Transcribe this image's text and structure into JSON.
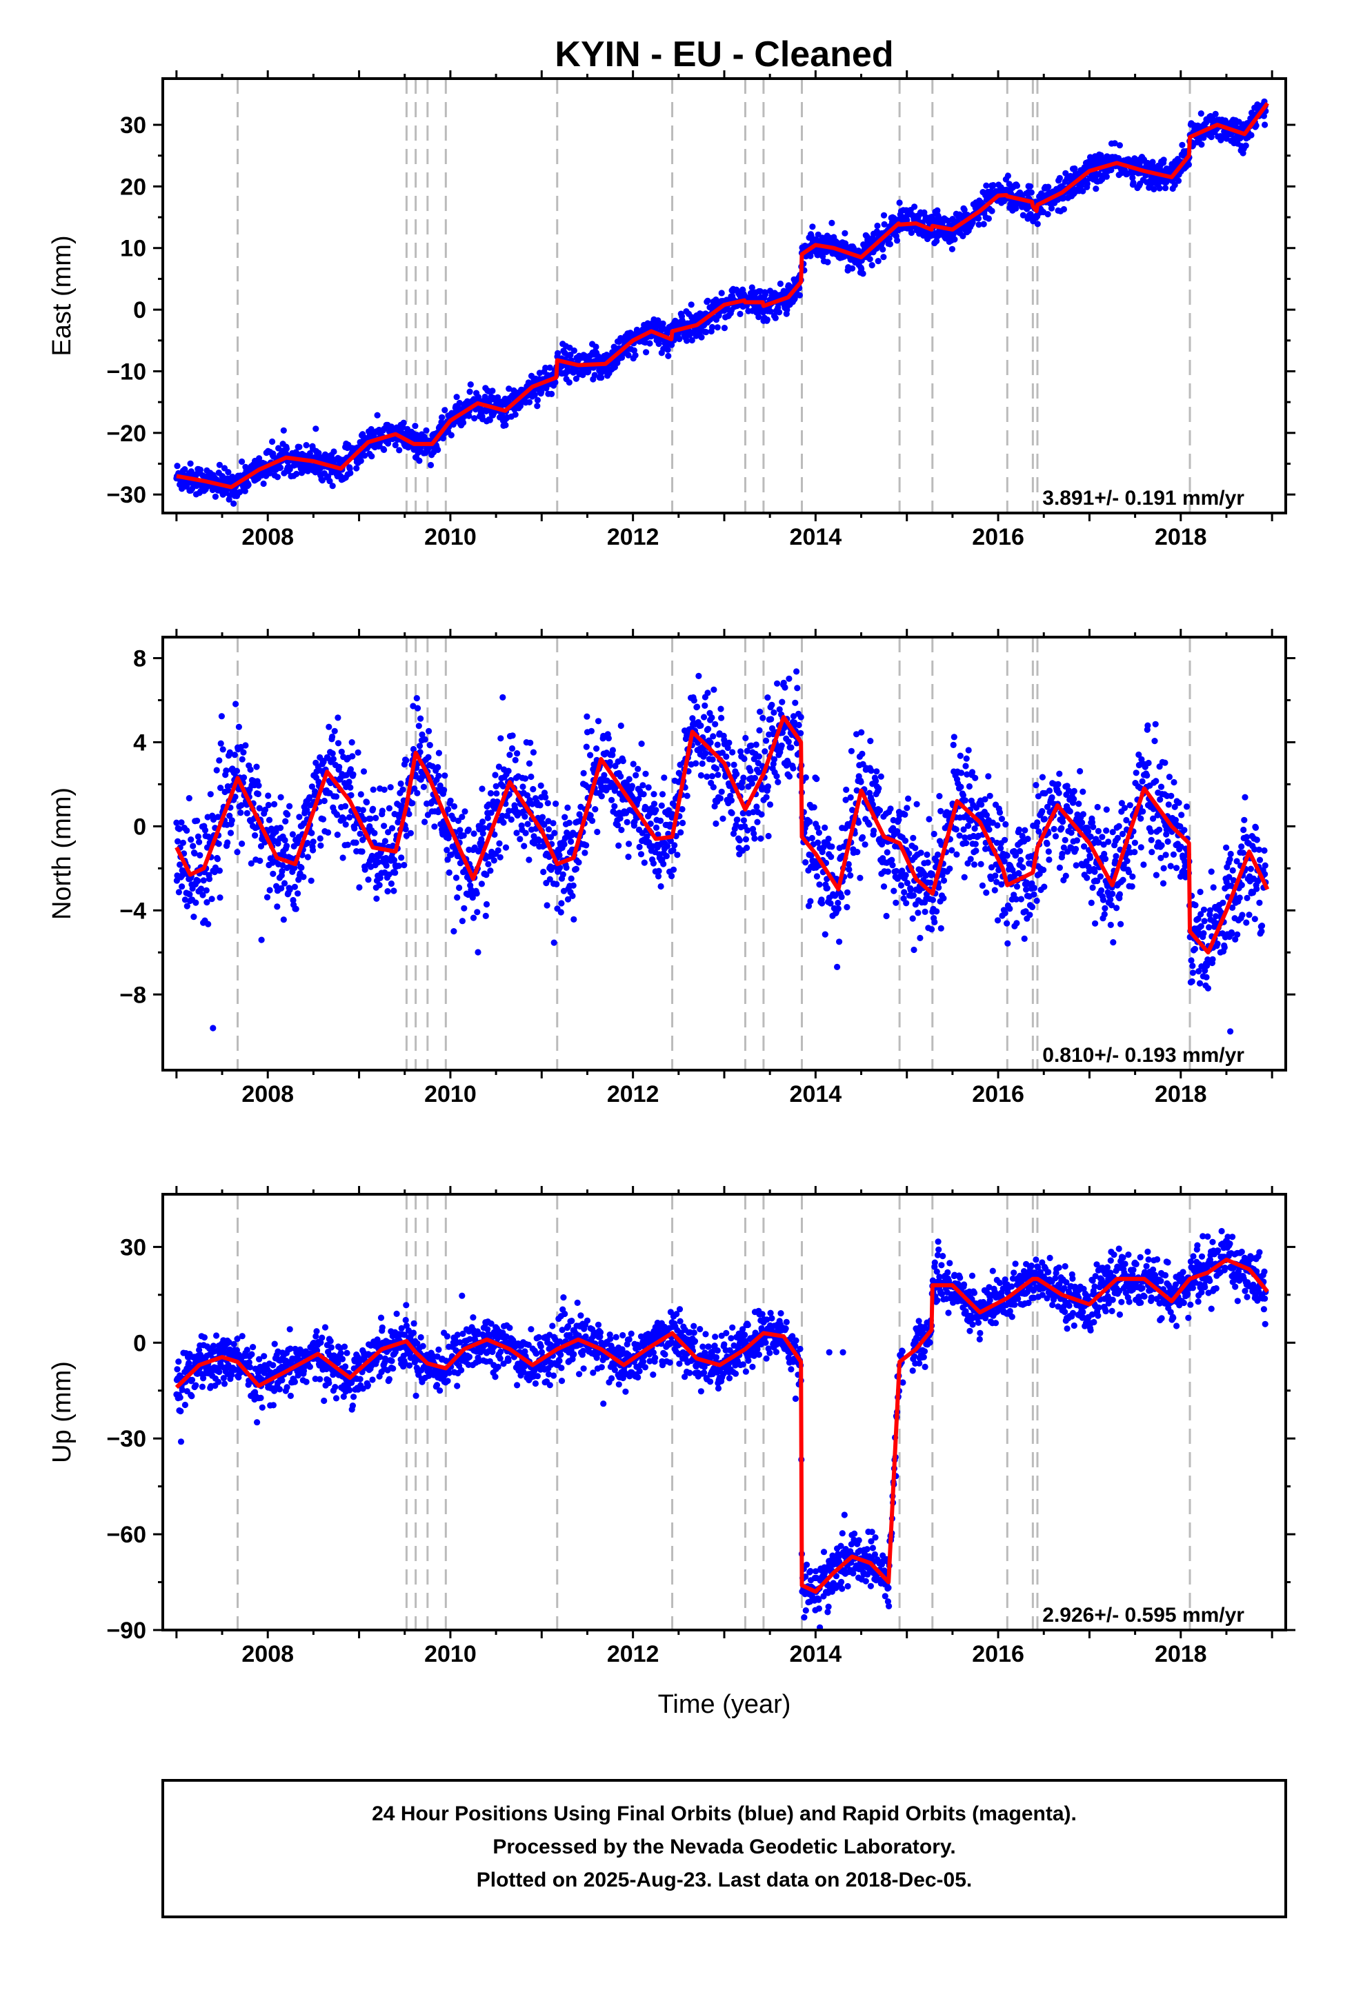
{
  "chart_data": {
    "type": "scatter",
    "title": "KYIN  - EU - Cleaned",
    "xlabel": "Time (year)",
    "xlim": [
      2006.85,
      2019.15
    ],
    "x_ticks": [
      2008,
      2010,
      2012,
      2014,
      2016,
      2018
    ],
    "offset_lines_year": [
      2007.67,
      2009.52,
      2009.62,
      2009.75,
      2009.95,
      2011.17,
      2012.43,
      2013.23,
      2013.43,
      2013.85,
      2014.92,
      2015.28,
      2016.1,
      2016.38,
      2016.43,
      2018.1
    ],
    "panels": [
      {
        "name": "east",
        "ylabel": "East (mm)",
        "ylim": [
          -33,
          37.5
        ],
        "y_ticks": [
          -30,
          -20,
          -10,
          0,
          10,
          20,
          30
        ],
        "rate_text": "3.891+/- 0.191 mm/yr",
        "trend": {
          "x": [
            2007.0,
            2007.3,
            2007.6,
            2007.9,
            2008.2,
            2008.5,
            2008.8,
            2009.1,
            2009.4,
            2009.6,
            2009.8,
            2010.0,
            2010.3,
            2010.6,
            2010.9,
            2011.16,
            2011.17,
            2011.4,
            2011.7,
            2012.0,
            2012.2,
            2012.42,
            2012.43,
            2012.7,
            2013.0,
            2013.22,
            2013.23,
            2013.42,
            2013.43,
            2013.7,
            2013.84,
            2013.85,
            2014.0,
            2014.2,
            2014.5,
            2014.8,
            2014.91,
            2014.92,
            2015.1,
            2015.27,
            2015.28,
            2015.5,
            2015.8,
            2016.0,
            2016.09,
            2016.1,
            2016.37,
            2016.38,
            2016.42,
            2016.43,
            2016.7,
            2017.0,
            2017.3,
            2017.6,
            2017.9,
            2018.09,
            2018.1,
            2018.4,
            2018.7,
            2018.95
          ],
          "y": [
            -27,
            -27.8,
            -28.8,
            -26,
            -24,
            -24.6,
            -25.8,
            -21.5,
            -20.2,
            -21.8,
            -21.8,
            -18,
            -15.2,
            -16.4,
            -12.5,
            -11,
            -8.2,
            -9,
            -8.8,
            -5,
            -3.5,
            -4.8,
            -3.5,
            -2.5,
            0.8,
            1.5,
            1.2,
            1.2,
            0.6,
            2,
            4.5,
            9,
            10.5,
            10,
            8.5,
            12.5,
            14,
            13.8,
            14,
            13,
            13.6,
            13,
            16,
            18.5,
            18.6,
            18.4,
            17.5,
            16.8,
            16,
            17,
            19,
            22.5,
            23.8,
            22.5,
            21.5,
            25,
            28,
            30,
            28.5,
            33.5
          ]
        }
      },
      {
        "name": "north",
        "ylabel": "North (mm)",
        "ylim": [
          -11.6,
          9.0
        ],
        "y_ticks": [
          -8,
          -4,
          0,
          4,
          8
        ],
        "rate_text": "0.810+/- 0.193 mm/yr",
        "trend": {
          "x": [
            2007.0,
            2007.15,
            2007.3,
            2007.67,
            2008.1,
            2008.3,
            2008.65,
            2008.9,
            2009.15,
            2009.4,
            2009.52,
            2009.62,
            2009.75,
            2009.95,
            2010.25,
            2010.65,
            2011.0,
            2011.17,
            2011.35,
            2011.65,
            2012.0,
            2012.25,
            2012.43,
            2012.65,
            2013.0,
            2013.23,
            2013.43,
            2013.65,
            2013.84,
            2013.85,
            2014.0,
            2014.25,
            2014.5,
            2014.75,
            2014.92,
            2015.1,
            2015.28,
            2015.55,
            2015.8,
            2016.05,
            2016.1,
            2016.38,
            2016.43,
            2016.65,
            2017.0,
            2017.25,
            2017.6,
            2017.9,
            2018.09,
            2018.1,
            2018.3,
            2018.5,
            2018.75,
            2018.95
          ],
          "y": [
            -1,
            -2.3,
            -2,
            2.3,
            -1.5,
            -1.8,
            2.6,
            1.2,
            -1,
            -1.2,
            1,
            3.5,
            2.5,
            0.4,
            -2.5,
            2.1,
            -0.2,
            -1.8,
            -1.5,
            3.2,
            1,
            -0.6,
            -0.5,
            4.5,
            3,
            0.8,
            2.5,
            5.2,
            4,
            -0.5,
            -1.3,
            -3,
            1.7,
            -0.5,
            -0.8,
            -2.5,
            -3.2,
            1.2,
            0.2,
            -2,
            -2.8,
            -2.2,
            -1,
            1,
            -0.8,
            -2.8,
            1.8,
            0,
            -0.8,
            -5,
            -6,
            -4,
            -1.2,
            -3
          ]
        }
      },
      {
        "name": "up",
        "ylabel": "Up (mm)",
        "ylim": [
          -90,
          46.5
        ],
        "y_ticks": [
          -90,
          -60,
          -30,
          0,
          30
        ],
        "rate_text": "2.926+/- 0.595 mm/yr",
        "trend": {
          "x": [
            2007.0,
            2007.25,
            2007.5,
            2007.67,
            2007.9,
            2008.2,
            2008.55,
            2008.9,
            2009.25,
            2009.52,
            2009.62,
            2009.75,
            2009.95,
            2010.15,
            2010.4,
            2010.65,
            2010.9,
            2011.17,
            2011.4,
            2011.65,
            2011.9,
            2012.15,
            2012.43,
            2012.7,
            2012.95,
            2013.23,
            2013.43,
            2013.65,
            2013.84,
            2013.85,
            2014.0,
            2014.2,
            2014.4,
            2014.6,
            2014.8,
            2014.92,
            2015.1,
            2015.27,
            2015.28,
            2015.5,
            2015.8,
            2016.1,
            2016.38,
            2016.43,
            2016.7,
            2017.0,
            2017.3,
            2017.6,
            2017.9,
            2018.1,
            2018.3,
            2018.5,
            2018.75,
            2018.95
          ],
          "y": [
            -14,
            -7,
            -4.5,
            -6,
            -13.5,
            -9,
            -3.5,
            -11,
            -2,
            0.5,
            -3,
            -6.5,
            -8,
            -2,
            1,
            -2,
            -7,
            -2,
            1,
            -2,
            -7,
            -2,
            3,
            -5,
            -7,
            -2,
            3,
            2,
            -6,
            -76,
            -78,
            -72,
            -67,
            -69,
            -75,
            -6,
            -2,
            4,
            18,
            18,
            9.5,
            14,
            20,
            20,
            15,
            12,
            20,
            20,
            13,
            20,
            22,
            26,
            23,
            16
          ]
        }
      }
    ],
    "scatter_note": "daily positions (blue dots) scattered around the red model curve"
  },
  "footer": {
    "line1": "24 Hour Positions Using Final Orbits (blue) and Rapid Orbits (magenta).",
    "line2": "Processed by the Nevada Geodetic Laboratory.",
    "line3": "Plotted on 2025-Aug-23. Last data on 2018-Dec-05."
  },
  "colors": {
    "points": "#0000ff",
    "trend": "#ff0000",
    "offset_lines": "#bbbbbb",
    "frame": "#000000"
  }
}
